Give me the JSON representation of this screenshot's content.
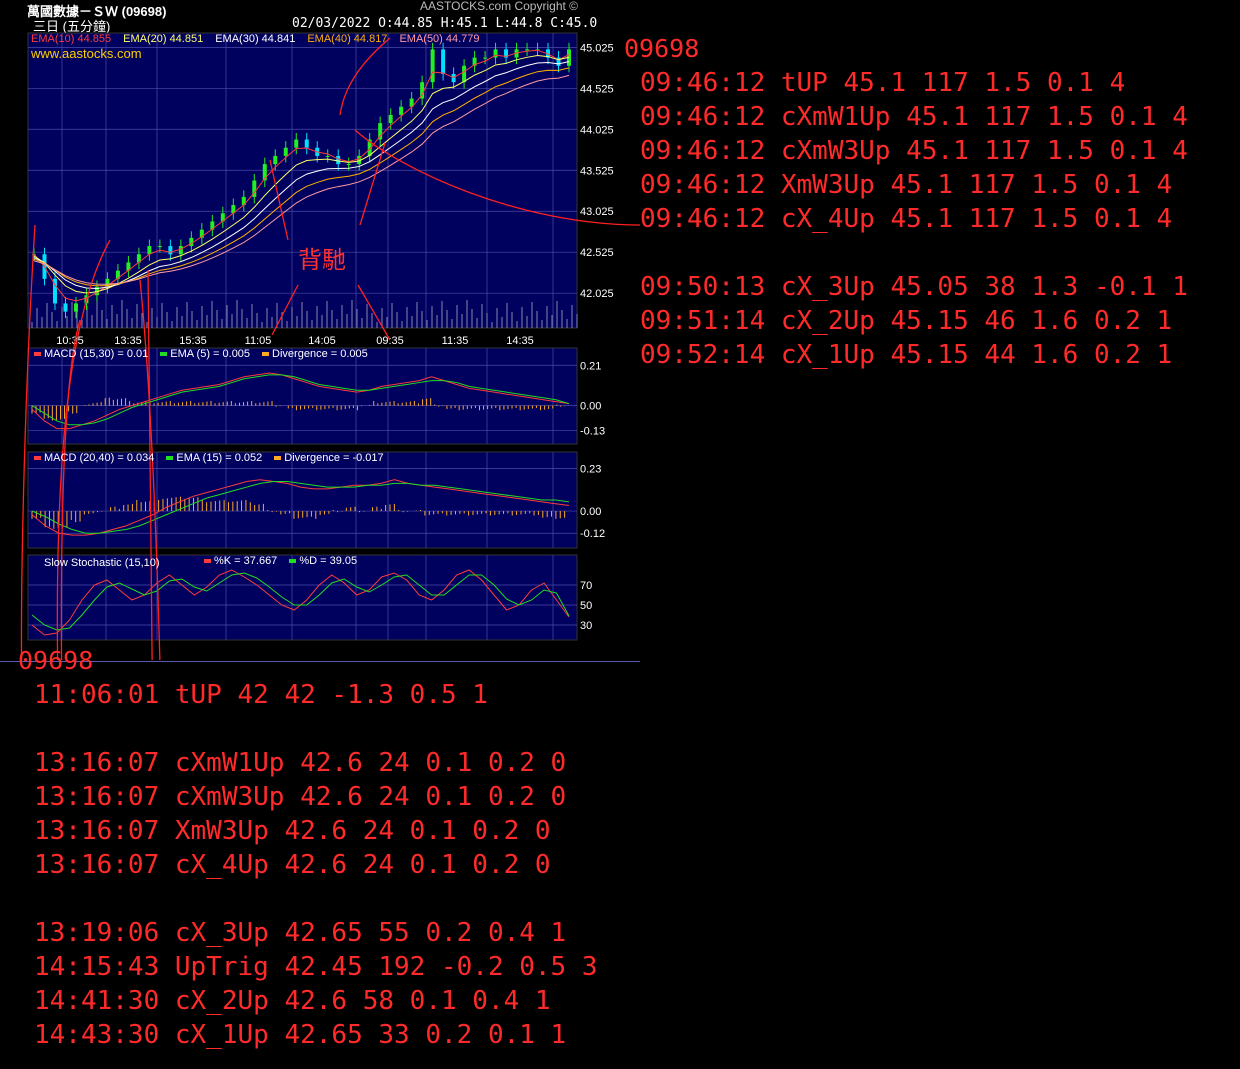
{
  "header": {
    "title": "萬國數據－ＳＷ (09698)",
    "subtitle": "三日 (五分鐘)",
    "ohlc": "02/03/2022   O:44.85  H:45.1  L:44.8  C:45.0",
    "copyright": "AASTOCKS.com Copyright ©"
  },
  "price_panel": {
    "legend": [
      {
        "text": "EMA(10) 44.855",
        "color": "#ff3b3b"
      },
      {
        "text": "EMA(20) 44.851",
        "color": "#ffff66"
      },
      {
        "text": "EMA(30) 44.841",
        "color": "#ffffff"
      },
      {
        "text": "EMA(40) 44.817",
        "color": "#ffb000"
      },
      {
        "text": "EMA(50) 44.779",
        "color": "#ff9aa0"
      }
    ],
    "watermark": "www.aastocks.com"
  },
  "macd1": {
    "legend": [
      {
        "text": "MACD (15,30) = 0.01",
        "color": "#ff3b3b"
      },
      {
        "text": "EMA (5) = 0.005",
        "color": "#22dd22"
      },
      {
        "text": "Divergence = 0.005",
        "color": "#ffaa22"
      }
    ]
  },
  "macd2": {
    "legend": [
      {
        "text": "MACD (20,40) = 0.034",
        "color": "#ff3b3b"
      },
      {
        "text": "EMA (15) = 0.052",
        "color": "#22dd22"
      },
      {
        "text": "Divergence = -0.017",
        "color": "#ffaa22"
      }
    ]
  },
  "stoch": {
    "title": "Slow Stochastic (15,10)",
    "legend": [
      {
        "text": "%K = 37.667",
        "color": "#ff3b3b"
      },
      {
        "text": "%D = 39.05",
        "color": "#22dd22"
      }
    ]
  },
  "annotation": "背馳",
  "signals_right": {
    "code": "09698",
    "lines": [
      "09:46:12 tUP 45.1 117 1.5 0.1 4",
      "09:46:12 cXmW1Up 45.1 117 1.5 0.1 4",
      "09:46:12 cXmW3Up 45.1 117 1.5 0.1 4",
      "09:46:12 XmW3Up 45.1 117 1.5 0.1 4",
      "09:46:12 cX_4Up 45.1 117 1.5 0.1 4",
      "",
      "09:50:13 cX_3Up 45.05 38 1.3 -0.1 1",
      "09:51:14 cX_2Up 45.15 46 1.6 0.2 1",
      "09:52:14 cX_1Up 45.15 44 1.6 0.2 1"
    ]
  },
  "signals_bottom": {
    "code": "09698",
    "lines": [
      "11:06:01 tUP 42 42 -1.3 0.5 1",
      "",
      "13:16:07 cXmW1Up 42.6 24 0.1 0.2 0",
      "13:16:07 cXmW3Up 42.6 24 0.1 0.2 0",
      "13:16:07 XmW3Up 42.6 24 0.1 0.2 0",
      "13:16:07 cX_4Up 42.6 24 0.1 0.2 0",
      "",
      "13:19:06 cX_3Up 42.65 55 0.2 0.4 1",
      "14:15:43 UpTrig 42.45 192 -0.2 0.5 3",
      "14:41:30 cX_2Up 42.6 58 0.1 0.4 1",
      "14:43:30 cX_1Up 42.65 33 0.2 0.1 1"
    ]
  },
  "chart_data": [
    {
      "type": "line",
      "panel": "price",
      "x_tick_labels": [
        "10:35",
        "13:35",
        "15:35",
        "11:05",
        "14:05",
        "09:35",
        "11:35",
        "14:35"
      ],
      "y_tick_labels": [
        "45.025",
        "44.525",
        "44.025",
        "43.525",
        "43.025",
        "42.525",
        "42.025"
      ],
      "ylim": [
        41.6,
        45.2
      ],
      "series": [
        {
          "name": "EMA(10)",
          "color": "#ff3b3b"
        },
        {
          "name": "EMA(20)",
          "color": "#ffff66"
        },
        {
          "name": "EMA(30)",
          "color": "#ffffff"
        },
        {
          "name": "EMA(40)",
          "color": "#ffb000"
        },
        {
          "name": "EMA(50)",
          "color": "#ff9aa0"
        }
      ],
      "close": [
        42.5,
        42.2,
        41.9,
        41.8,
        41.9,
        42.0,
        42.1,
        42.2,
        42.3,
        42.4,
        42.5,
        42.6,
        42.6,
        42.5,
        42.6,
        42.7,
        42.8,
        42.9,
        43.0,
        43.1,
        43.2,
        43.4,
        43.6,
        43.7,
        43.8,
        43.9,
        43.8,
        43.7,
        43.7,
        43.6,
        43.6,
        43.7,
        43.9,
        44.1,
        44.2,
        44.3,
        44.4,
        44.6,
        45.0,
        44.7,
        44.6,
        44.8,
        44.9,
        44.9,
        45.0,
        44.9,
        45.0,
        45.0,
        45.0,
        44.9,
        44.8,
        45.0
      ]
    },
    {
      "type": "line",
      "panel": "macd (15,30)",
      "y_tick_labels": [
        "0.21",
        "0.00",
        "-0.13"
      ],
      "ylim": [
        -0.2,
        0.3
      ],
      "series": [
        {
          "name": "MACD (15,30)",
          "color": "#ff3b3b",
          "values": [
            -0.02,
            -0.08,
            -0.12,
            -0.12,
            -0.1,
            -0.08,
            -0.05,
            -0.02,
            0.0,
            0.02,
            0.04,
            0.06,
            0.08,
            0.09,
            0.1,
            0.11,
            0.13,
            0.15,
            0.16,
            0.17,
            0.16,
            0.14,
            0.12,
            0.1,
            0.09,
            0.08,
            0.07,
            0.08,
            0.1,
            0.11,
            0.12,
            0.13,
            0.15,
            0.13,
            0.11,
            0.09,
            0.08,
            0.07,
            0.06,
            0.05,
            0.04,
            0.03,
            0.02,
            0.01
          ]
        },
        {
          "name": "EMA (5)",
          "color": "#22dd22",
          "values": [
            0.0,
            -0.04,
            -0.08,
            -0.1,
            -0.1,
            -0.09,
            -0.07,
            -0.04,
            -0.01,
            0.01,
            0.03,
            0.05,
            0.07,
            0.08,
            0.09,
            0.1,
            0.12,
            0.14,
            0.15,
            0.16,
            0.16,
            0.15,
            0.13,
            0.11,
            0.1,
            0.09,
            0.08,
            0.08,
            0.09,
            0.1,
            0.11,
            0.12,
            0.13,
            0.13,
            0.12,
            0.1,
            0.09,
            0.08,
            0.07,
            0.06,
            0.05,
            0.04,
            0.03,
            0.01
          ]
        }
      ]
    },
    {
      "type": "line",
      "panel": "macd (20,40)",
      "y_tick_labels": [
        "0.23",
        "0.00",
        "-0.12"
      ],
      "ylim": [
        -0.2,
        0.32
      ],
      "series": [
        {
          "name": "MACD (20,40)",
          "color": "#ff3b3b",
          "values": [
            -0.02,
            -0.08,
            -0.12,
            -0.13,
            -0.13,
            -0.12,
            -0.1,
            -0.08,
            -0.05,
            -0.02,
            0.02,
            0.05,
            0.08,
            0.1,
            0.12,
            0.14,
            0.16,
            0.17,
            0.16,
            0.15,
            0.13,
            0.12,
            0.12,
            0.13,
            0.14,
            0.14,
            0.15,
            0.17,
            0.15,
            0.14,
            0.13,
            0.12,
            0.11,
            0.1,
            0.09,
            0.08,
            0.07,
            0.06,
            0.05,
            0.04,
            0.03
          ]
        },
        {
          "name": "EMA (15)",
          "color": "#22dd22",
          "values": [
            0.0,
            -0.03,
            -0.07,
            -0.1,
            -0.12,
            -0.12,
            -0.11,
            -0.1,
            -0.08,
            -0.05,
            -0.02,
            0.01,
            0.04,
            0.07,
            0.09,
            0.11,
            0.13,
            0.15,
            0.16,
            0.16,
            0.15,
            0.14,
            0.13,
            0.13,
            0.13,
            0.14,
            0.14,
            0.15,
            0.15,
            0.14,
            0.14,
            0.13,
            0.12,
            0.11,
            0.1,
            0.09,
            0.08,
            0.07,
            0.06,
            0.06,
            0.05
          ]
        }
      ]
    },
    {
      "type": "line",
      "panel": "slow stochastic",
      "y_tick_labels": [
        "70",
        "50",
        "30"
      ],
      "ylim": [
        15,
        100
      ],
      "series": [
        {
          "name": "%K",
          "color": "#ff3b3b",
          "values": [
            30,
            20,
            22,
            35,
            55,
            70,
            75,
            65,
            55,
            60,
            72,
            80,
            70,
            60,
            68,
            80,
            85,
            78,
            70,
            60,
            50,
            45,
            55,
            70,
            80,
            72,
            60,
            65,
            78,
            82,
            75,
            60,
            55,
            65,
            80,
            85,
            75,
            60,
            45,
            50,
            65,
            72,
            55,
            38
          ]
        },
        {
          "name": "%D",
          "color": "#22dd22",
          "values": [
            40,
            30,
            25,
            27,
            40,
            55,
            68,
            72,
            66,
            60,
            64,
            74,
            76,
            68,
            64,
            72,
            80,
            82,
            77,
            68,
            58,
            50,
            50,
            60,
            72,
            76,
            68,
            63,
            70,
            78,
            80,
            70,
            60,
            60,
            70,
            80,
            80,
            70,
            56,
            50,
            55,
            65,
            62,
            39
          ]
        }
      ]
    }
  ]
}
